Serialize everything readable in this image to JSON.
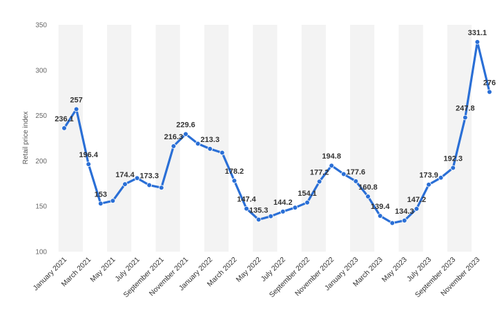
{
  "chart_data": {
    "type": "line",
    "title": "",
    "xlabel": "",
    "ylabel": "Retail price index",
    "ylim": [
      100,
      350
    ],
    "yticks": [
      100,
      150,
      200,
      250,
      300,
      350
    ],
    "grid": false,
    "legend": "none",
    "x": [
      "January 2021",
      "February 2021",
      "March 2021",
      "April 2021",
      "May 2021",
      "June 2021",
      "July 2021",
      "August 2021",
      "September 2021",
      "October 2021",
      "November 2021",
      "December 2021",
      "January 2022",
      "February 2022",
      "March 2022",
      "April 2022",
      "May 2022",
      "June 2022",
      "July 2022",
      "August 2022",
      "September 2022",
      "October 2022",
      "November 2022",
      "December 2022",
      "January 2023",
      "February 2023",
      "March 2023",
      "April 2023",
      "May 2023",
      "June 2023",
      "July 2023",
      "August 2023",
      "September 2023",
      "October 2023",
      "November 2023",
      "December 2023"
    ],
    "xtick_labels": [
      "January 2021",
      "March 2021",
      "May 2021",
      "July 2021",
      "September 2021",
      "November 2021",
      "January 2022",
      "March 2022",
      "May 2022",
      "July 2022",
      "September 2022",
      "November 2022",
      "January 2023",
      "March 2023",
      "May 2023",
      "July 2023",
      "September 2023",
      "November 2023"
    ],
    "series": [
      {
        "values": [
          236.1,
          257,
          196.4,
          153,
          156,
          174.4,
          181,
          173.3,
          170.5,
          216.3,
          229.6,
          219,
          213.3,
          209,
          178.2,
          147.4,
          135.3,
          139,
          144.2,
          148.5,
          154.1,
          177.2,
          194.8,
          185.5,
          177.6,
          160.8,
          139.4,
          131.5,
          134.3,
          147.2,
          173.9,
          181.5,
          192.3,
          247.8,
          331.1,
          276
        ]
      }
    ],
    "data_labels": [
      {
        "index": 0,
        "text": "236.1"
      },
      {
        "index": 1,
        "text": "257"
      },
      {
        "index": 2,
        "text": "196.4"
      },
      {
        "index": 3,
        "text": "153"
      },
      {
        "index": 5,
        "text": "174.4"
      },
      {
        "index": 7,
        "text": "173.3"
      },
      {
        "index": 9,
        "text": "216.3"
      },
      {
        "index": 10,
        "text": "229.6"
      },
      {
        "index": 12,
        "text": "213.3"
      },
      {
        "index": 14,
        "text": "178.2"
      },
      {
        "index": 15,
        "text": "147.4"
      },
      {
        "index": 16,
        "text": "135.3"
      },
      {
        "index": 18,
        "text": "144.2"
      },
      {
        "index": 20,
        "text": "154.1"
      },
      {
        "index": 21,
        "text": "177.2"
      },
      {
        "index": 22,
        "text": "194.8"
      },
      {
        "index": 24,
        "text": "177.6"
      },
      {
        "index": 25,
        "text": "160.8"
      },
      {
        "index": 26,
        "text": "139.4"
      },
      {
        "index": 28,
        "text": "134.3"
      },
      {
        "index": 29,
        "text": "147.2"
      },
      {
        "index": 30,
        "text": "173.9"
      },
      {
        "index": 32,
        "text": "192.3"
      },
      {
        "index": 33,
        "text": "247.8"
      },
      {
        "index": 34,
        "text": "331.1"
      },
      {
        "index": 35,
        "text": "276"
      }
    ],
    "colors": {
      "line": "#2a6fd6",
      "band": "#f3f3f3",
      "label": "#333333"
    }
  }
}
